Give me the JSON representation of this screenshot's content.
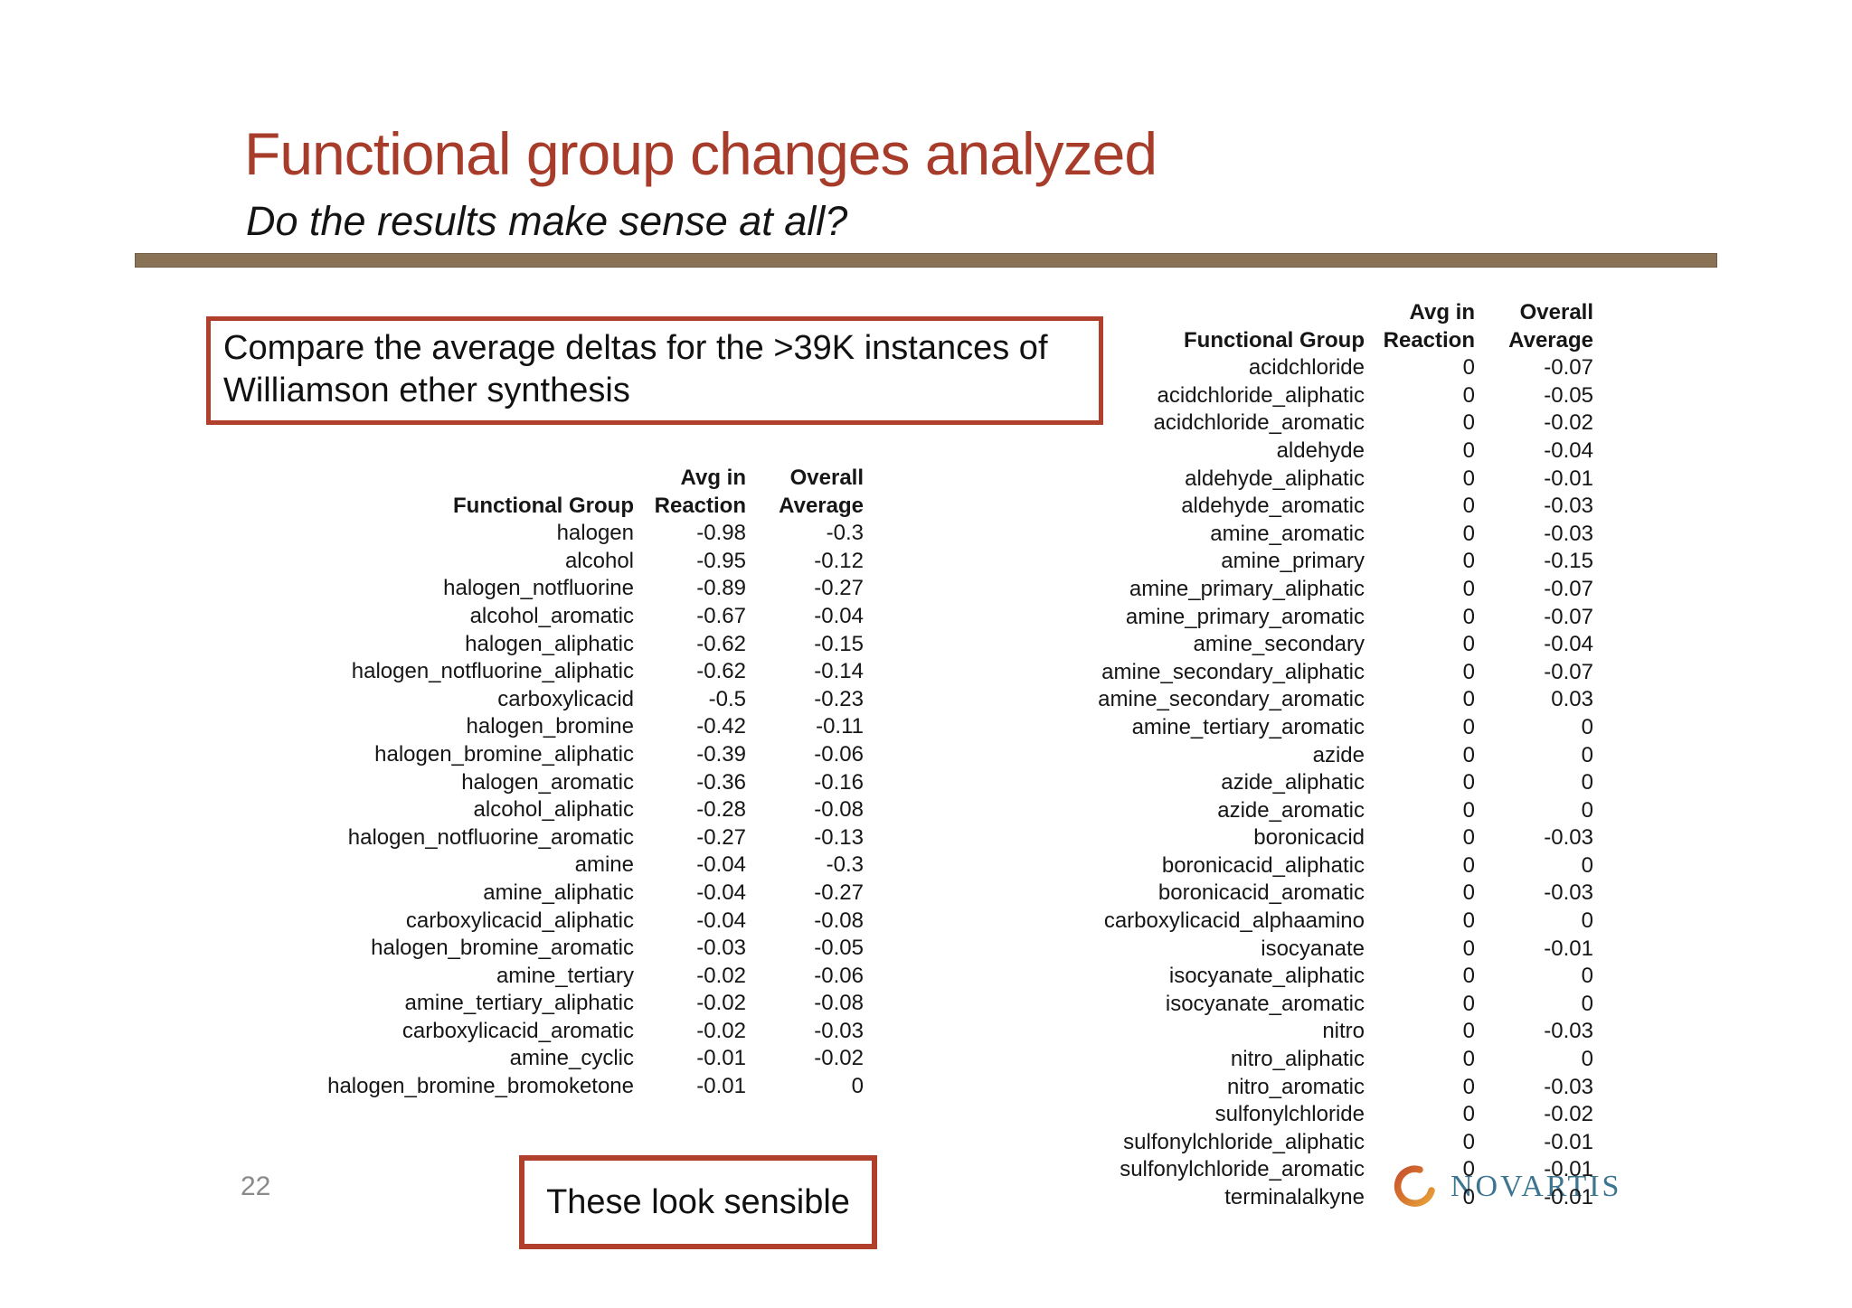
{
  "slide": {
    "title": "Functional group changes analyzed",
    "subtitle": "Do the results make sense at all?",
    "page_number": "22",
    "callouts": {
      "compare": "Compare the average deltas for the >39K instances of Williamson ether synthesis",
      "sensible": "These look sensible"
    },
    "logo": {
      "text": "NOVARTIS"
    }
  },
  "table_headers": {
    "group": "Functional Group",
    "avg_line1": "Avg in",
    "avg_line2": "Reaction",
    "overall_line1": "Overall",
    "overall_line2": "Average"
  },
  "left_table": {
    "rows": [
      [
        "halogen",
        "-0.98",
        "-0.3"
      ],
      [
        "alcohol",
        "-0.95",
        "-0.12"
      ],
      [
        "halogen_notfluorine",
        "-0.89",
        "-0.27"
      ],
      [
        "alcohol_aromatic",
        "-0.67",
        "-0.04"
      ],
      [
        "halogen_aliphatic",
        "-0.62",
        "-0.15"
      ],
      [
        "halogen_notfluorine_aliphatic",
        "-0.62",
        "-0.14"
      ],
      [
        "carboxylicacid",
        "-0.5",
        "-0.23"
      ],
      [
        "halogen_bromine",
        "-0.42",
        "-0.11"
      ],
      [
        "halogen_bromine_aliphatic",
        "-0.39",
        "-0.06"
      ],
      [
        "halogen_aromatic",
        "-0.36",
        "-0.16"
      ],
      [
        "alcohol_aliphatic",
        "-0.28",
        "-0.08"
      ],
      [
        "halogen_notfluorine_aromatic",
        "-0.27",
        "-0.13"
      ],
      [
        "amine",
        "-0.04",
        "-0.3"
      ],
      [
        "amine_aliphatic",
        "-0.04",
        "-0.27"
      ],
      [
        "carboxylicacid_aliphatic",
        "-0.04",
        "-0.08"
      ],
      [
        "halogen_bromine_aromatic",
        "-0.03",
        "-0.05"
      ],
      [
        "amine_tertiary",
        "-0.02",
        "-0.06"
      ],
      [
        "amine_tertiary_aliphatic",
        "-0.02",
        "-0.08"
      ],
      [
        "carboxylicacid_aromatic",
        "-0.02",
        "-0.03"
      ],
      [
        "amine_cyclic",
        "-0.01",
        "-0.02"
      ],
      [
        "halogen_bromine_bromoketone",
        "-0.01",
        "0"
      ]
    ]
  },
  "right_table": {
    "rows": [
      [
        "acidchloride",
        "0",
        "-0.07"
      ],
      [
        "acidchloride_aliphatic",
        "0",
        "-0.05"
      ],
      [
        "acidchloride_aromatic",
        "0",
        "-0.02"
      ],
      [
        "aldehyde",
        "0",
        "-0.04"
      ],
      [
        "aldehyde_aliphatic",
        "0",
        "-0.01"
      ],
      [
        "aldehyde_aromatic",
        "0",
        "-0.03"
      ],
      [
        "amine_aromatic",
        "0",
        "-0.03"
      ],
      [
        "amine_primary",
        "0",
        "-0.15"
      ],
      [
        "amine_primary_aliphatic",
        "0",
        "-0.07"
      ],
      [
        "amine_primary_aromatic",
        "0",
        "-0.07"
      ],
      [
        "amine_secondary",
        "0",
        "-0.04"
      ],
      [
        "amine_secondary_aliphatic",
        "0",
        "-0.07"
      ],
      [
        "amine_secondary_aromatic",
        "0",
        "0.03"
      ],
      [
        "amine_tertiary_aromatic",
        "0",
        "0"
      ],
      [
        "azide",
        "0",
        "0"
      ],
      [
        "azide_aliphatic",
        "0",
        "0"
      ],
      [
        "azide_aromatic",
        "0",
        "0"
      ],
      [
        "boronicacid",
        "0",
        "-0.03"
      ],
      [
        "boronicacid_aliphatic",
        "0",
        "0"
      ],
      [
        "boronicacid_aromatic",
        "0",
        "-0.03"
      ],
      [
        "carboxylicacid_alphaamino",
        "0",
        "0"
      ],
      [
        "isocyanate",
        "0",
        "-0.01"
      ],
      [
        "isocyanate_aliphatic",
        "0",
        "0"
      ],
      [
        "isocyanate_aromatic",
        "0",
        "0"
      ],
      [
        "nitro",
        "0",
        "-0.03"
      ],
      [
        "nitro_aliphatic",
        "0",
        "0"
      ],
      [
        "nitro_aromatic",
        "0",
        "-0.03"
      ],
      [
        "sulfonylchloride",
        "0",
        "-0.02"
      ],
      [
        "sulfonylchloride_aliphatic",
        "0",
        "-0.01"
      ],
      [
        "sulfonylchloride_aromatic",
        "0",
        "-0.01"
      ],
      [
        "terminalalkyne",
        "0",
        "-0.01"
      ]
    ]
  },
  "colors": {
    "accent_red": "#a83c2b",
    "divider_brown": "#8a7256",
    "table_text": "#161616",
    "page_number_gray": "#8a8a8a",
    "logo_teal": "#3b7590",
    "logo_swoosh_red": "#c7502c",
    "logo_swoosh_yellow": "#e6a23c"
  }
}
